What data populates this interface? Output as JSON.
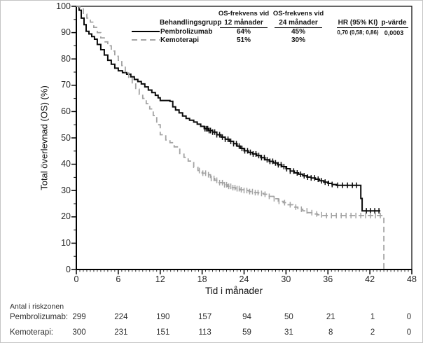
{
  "legend": {
    "header": {
      "group": "Behandlingsgrupp",
      "os12_top": "OS-frekvens vid",
      "os12_bottom": "12 månader",
      "os24_top": "OS-frekvens vid",
      "os24_bottom": "24 månader",
      "hr": "HR (95% KI)",
      "p": "p-värde"
    },
    "rows": [
      {
        "name": "Pembrolizumab",
        "os12": "64%",
        "os24": "45%",
        "hr": "0,70 (0,58; 0,86)",
        "p": "0,0003"
      },
      {
        "name": "Kemoterapi",
        "os12": "51%",
        "os24": "30%"
      }
    ]
  },
  "axes": {
    "x_label": "Tid i månader",
    "y_label": "Total överlevnad (OS) (%)"
  },
  "risk_table": {
    "title": "Antal i riskzonen",
    "rows": [
      {
        "label": "Pembrolizumab:",
        "values": [
          299,
          224,
          190,
          157,
          94,
          50,
          21,
          1,
          0
        ]
      },
      {
        "label": "Kemoterapi:",
        "values": [
          300,
          231,
          151,
          113,
          59,
          31,
          8,
          2,
          0
        ]
      }
    ]
  },
  "chart_data": {
    "type": "line",
    "subtype": "kaplan-meier-step",
    "title": "",
    "xlabel": "Tid i månader",
    "ylabel": "Total överlevnad (OS) (%)",
    "xlim": [
      0,
      48
    ],
    "ylim": [
      0,
      100
    ],
    "x_ticks": [
      0,
      6,
      12,
      18,
      24,
      30,
      36,
      42,
      48
    ],
    "y_ticks": [
      0,
      10,
      20,
      30,
      40,
      50,
      60,
      70,
      80,
      90,
      100
    ],
    "grid": false,
    "legend_position": "top-inside",
    "series": [
      {
        "name": "Pembrolizumab",
        "color": "#0a0a0a",
        "style": "solid",
        "os_12mo": "64%",
        "os_24mo": "45%",
        "hr_95ki": "0,70 (0,58; 0,86)",
        "p_value": "0,0003",
        "steps": [
          [
            0,
            100
          ],
          [
            0.4,
            98.5
          ],
          [
            0.7,
            95.5
          ],
          [
            1.1,
            93
          ],
          [
            1.4,
            90.5
          ],
          [
            1.8,
            89.5
          ],
          [
            2.2,
            88.5
          ],
          [
            2.6,
            87.5
          ],
          [
            3,
            85.5
          ],
          [
            3.5,
            83.5
          ],
          [
            4,
            81.5
          ],
          [
            4.5,
            79.5
          ],
          [
            5,
            78
          ],
          [
            5.5,
            76.5
          ],
          [
            6,
            75.5
          ],
          [
            6.6,
            74.8
          ],
          [
            7.2,
            74.2
          ],
          [
            7.8,
            73.2
          ],
          [
            8.3,
            72.2
          ],
          [
            8.8,
            71.4
          ],
          [
            9.3,
            70.5
          ],
          [
            9.8,
            69.4
          ],
          [
            10.3,
            68.2
          ],
          [
            10.8,
            67.2
          ],
          [
            11.3,
            66.2
          ],
          [
            11.7,
            65.2
          ],
          [
            12,
            64.2
          ],
          [
            13.4,
            63.9
          ],
          [
            13.8,
            61.8
          ],
          [
            14.2,
            60.6
          ],
          [
            14.7,
            59.5
          ],
          [
            15.2,
            58.3
          ],
          [
            15.7,
            57.4
          ],
          [
            16.2,
            56.7
          ],
          [
            16.8,
            56
          ],
          [
            17.3,
            55.2
          ],
          [
            17.8,
            54.4
          ],
          [
            18.3,
            53.5
          ],
          [
            18.9,
            52.8
          ],
          [
            19.5,
            52.2
          ],
          [
            20.1,
            51.2
          ],
          [
            20.7,
            50.3
          ],
          [
            21.3,
            49.5
          ],
          [
            21.9,
            48.7
          ],
          [
            22.5,
            47.8
          ],
          [
            23,
            46.9
          ],
          [
            23.5,
            46
          ],
          [
            24,
            45.1
          ],
          [
            24.6,
            44.5
          ],
          [
            25.2,
            43.9
          ],
          [
            25.8,
            43.3
          ],
          [
            26.4,
            42.5
          ],
          [
            27,
            41.7
          ],
          [
            27.6,
            41.1
          ],
          [
            28.2,
            40.5
          ],
          [
            28.8,
            39.8
          ],
          [
            29.4,
            39.1
          ],
          [
            30,
            38.3
          ],
          [
            30.6,
            37.4
          ],
          [
            31.2,
            36.7
          ],
          [
            31.8,
            36.2
          ],
          [
            32.4,
            35.6
          ],
          [
            33,
            35.1
          ],
          [
            33.6,
            34.8
          ],
          [
            34.2,
            34.3
          ],
          [
            34.8,
            33.7
          ],
          [
            35.4,
            33.2
          ],
          [
            36,
            32.7
          ],
          [
            36.6,
            32.3
          ],
          [
            37.2,
            32
          ],
          [
            40.5,
            32
          ],
          [
            40.7,
            27
          ],
          [
            40.9,
            22.3
          ],
          [
            43.5,
            22.3
          ]
        ],
        "censors": [
          18.4,
          18.6,
          18.8,
          19.0,
          19.2,
          19.5,
          19.8,
          20.1,
          20.5,
          20.9,
          21.3,
          21.7,
          22.1,
          22.5,
          22.9,
          23.3,
          23.7,
          24.1,
          24.5,
          24.9,
          25.3,
          25.7,
          26.1,
          26.5,
          26.9,
          27.3,
          27.7,
          28.1,
          28.5,
          28.9,
          29.3,
          29.7,
          30.1,
          30.6,
          31.1,
          31.6,
          32.1,
          32.6,
          33.1,
          33.6,
          34.1,
          34.6,
          35.1,
          35.6,
          36.1,
          36.6,
          37.4,
          38.1,
          38.8,
          39.5,
          40.1,
          41.5,
          42.1,
          42.7,
          43.3
        ]
      },
      {
        "name": "Kemoterapi",
        "color": "#a3a3a3",
        "style": "dashed",
        "os_12mo": "51%",
        "os_24mo": "30%",
        "steps": [
          [
            0,
            100
          ],
          [
            0.5,
            99
          ],
          [
            1,
            97
          ],
          [
            1.5,
            95.5
          ],
          [
            2,
            94
          ],
          [
            2.5,
            92
          ],
          [
            3,
            90
          ],
          [
            3.5,
            88
          ],
          [
            4,
            86.5
          ],
          [
            4.5,
            85
          ],
          [
            5,
            83
          ],
          [
            5.5,
            81
          ],
          [
            6,
            79.5
          ],
          [
            6.5,
            77.5
          ],
          [
            7,
            75
          ],
          [
            7.5,
            73
          ],
          [
            8,
            70.5
          ],
          [
            8.5,
            68.5
          ],
          [
            9,
            66.5
          ],
          [
            9.5,
            65
          ],
          [
            10,
            63
          ],
          [
            10.5,
            61
          ],
          [
            11,
            58.5
          ],
          [
            11.5,
            55
          ],
          [
            12,
            51.2
          ],
          [
            12.8,
            49.2
          ],
          [
            13.4,
            48.2
          ],
          [
            14,
            46.6
          ],
          [
            14.8,
            43.8
          ],
          [
            15.4,
            42.6
          ],
          [
            16,
            41.2
          ],
          [
            16.8,
            38.8
          ],
          [
            17.4,
            37.6
          ],
          [
            18,
            36.6
          ],
          [
            18.6,
            36
          ],
          [
            19.2,
            34.6
          ],
          [
            19.8,
            33.9
          ],
          [
            20.4,
            33
          ],
          [
            21,
            32.2
          ],
          [
            21.6,
            31.6
          ],
          [
            22.2,
            31.1
          ],
          [
            22.8,
            30.7
          ],
          [
            23.4,
            30.3
          ],
          [
            24,
            30
          ],
          [
            24.7,
            29.6
          ],
          [
            25.4,
            29.2
          ],
          [
            26.1,
            28.9
          ],
          [
            26.8,
            28.6
          ],
          [
            27.5,
            27.8
          ],
          [
            28.2,
            26.9
          ],
          [
            28.9,
            25.9
          ],
          [
            29.6,
            25.4
          ],
          [
            30.3,
            24.6
          ],
          [
            31,
            23.7
          ],
          [
            31.7,
            22.9
          ],
          [
            32.4,
            22.3
          ],
          [
            33.1,
            21.6
          ],
          [
            33.8,
            21.1
          ],
          [
            34.5,
            20.8
          ],
          [
            35.2,
            20.5
          ],
          [
            43.8,
            20.5
          ],
          [
            44,
            0
          ]
        ],
        "censors": [
          17.6,
          18.1,
          18.5,
          18.9,
          19.3,
          19.7,
          20.1,
          20.5,
          20.9,
          21.2,
          21.5,
          21.8,
          22.1,
          22.4,
          22.7,
          23.0,
          23.3,
          23.6,
          24.0,
          24.4,
          24.8,
          25.2,
          25.6,
          26.0,
          26.5,
          27.0,
          27.6,
          28.3,
          29.0,
          29.8,
          30.6,
          31.4,
          32.2,
          33.0,
          33.7,
          34.4,
          35.1,
          35.8,
          36.5,
          37.2,
          37.9,
          38.6,
          39.3,
          40.0,
          40.7,
          41.4,
          42.1,
          42.8,
          43.5
        ]
      }
    ]
  }
}
